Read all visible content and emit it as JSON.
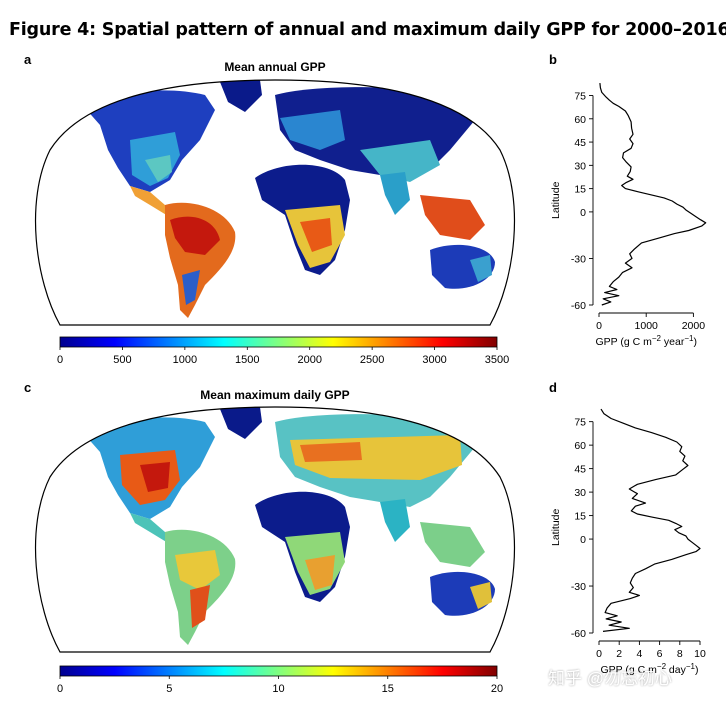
{
  "figure": {
    "title": "Figure 4: Spatial pattern of annual and maximum daily GPP for 2000–2016."
  },
  "panels": {
    "a": {
      "letter": "a",
      "title": "Mean annual GPP",
      "colorbar": {
        "ticks": [
          "0",
          "500",
          "1000",
          "1500",
          "2000",
          "2500",
          "3000",
          "3500"
        ]
      }
    },
    "b": {
      "letter": "b"
    },
    "c": {
      "letter": "c",
      "title": "Mean maximum daily GPP",
      "colorbar": {
        "ticks": [
          "0",
          "5",
          "10",
          "15",
          "20"
        ]
      }
    },
    "d": {
      "letter": "d"
    }
  },
  "colormap": [
    "#00008f",
    "#0000ff",
    "#0080ff",
    "#00ffff",
    "#80ff80",
    "#ffff00",
    "#ff8000",
    "#ff0000",
    "#800000"
  ],
  "watermark": "知乎 @勿忘初心",
  "chart_data": [
    {
      "type": "line",
      "panel": "b",
      "xlabel_parts": [
        "GPP (g C m",
        "−2",
        " year",
        "−1",
        ")"
      ],
      "ylabel": "Latitude",
      "xlim": [
        0,
        2500
      ],
      "ylim": [
        -60,
        85
      ],
      "xticks": [
        0,
        1000,
        2000
      ],
      "yticks": [
        -60,
        -30,
        0,
        15,
        30,
        45,
        60,
        75
      ],
      "y_axis_range": [
        -60,
        75
      ],
      "series": [
        {
          "points": [
            [
              20,
              83
            ],
            [
              30,
              80
            ],
            [
              60,
              77
            ],
            [
              150,
              74
            ],
            [
              220,
              72
            ],
            [
              300,
              70
            ],
            [
              420,
              68
            ],
            [
              560,
              65
            ],
            [
              620,
              62
            ],
            [
              680,
              58
            ],
            [
              690,
              54
            ],
            [
              720,
              50
            ],
            [
              650,
              47
            ],
            [
              720,
              44
            ],
            [
              680,
              41
            ],
            [
              520,
              38
            ],
            [
              500,
              35
            ],
            [
              580,
              32
            ],
            [
              680,
              29
            ],
            [
              660,
              26
            ],
            [
              600,
              23
            ],
            [
              720,
              21
            ],
            [
              580,
              19
            ],
            [
              480,
              17
            ],
            [
              560,
              15
            ],
            [
              820,
              13
            ],
            [
              1100,
              11
            ],
            [
              1380,
              9
            ],
            [
              1550,
              7
            ],
            [
              1650,
              5
            ],
            [
              1780,
              3
            ],
            [
              1850,
              1
            ],
            [
              1950,
              -1
            ],
            [
              2050,
              -3
            ],
            [
              2150,
              -5
            ],
            [
              2260,
              -7
            ],
            [
              2180,
              -9
            ],
            [
              1900,
              -12
            ],
            [
              1600,
              -14
            ],
            [
              1250,
              -17
            ],
            [
              900,
              -20
            ],
            [
              750,
              -24
            ],
            [
              650,
              -27
            ],
            [
              700,
              -30
            ],
            [
              560,
              -33
            ],
            [
              700,
              -36
            ],
            [
              500,
              -39
            ],
            [
              420,
              -42
            ],
            [
              300,
              -45
            ],
            [
              220,
              -48
            ],
            [
              380,
              -50
            ],
            [
              120,
              -52
            ],
            [
              420,
              -54
            ],
            [
              90,
              -56
            ],
            [
              250,
              -58
            ],
            [
              60,
              -60
            ]
          ]
        }
      ]
    },
    {
      "type": "line",
      "panel": "d",
      "xlabel_parts": [
        "GPP (g C m",
        "−2",
        " day",
        "−1",
        ")"
      ],
      "ylabel": "Latitude",
      "xlim": [
        0,
        10
      ],
      "ylim": [
        -60,
        85
      ],
      "xticks": [
        0,
        2,
        4,
        6,
        8,
        10
      ],
      "yticks": [
        -60,
        -30,
        0,
        15,
        30,
        45,
        60,
        75
      ],
      "y_axis_range": [
        -60,
        75
      ],
      "series": [
        {
          "points": [
            [
              0.2,
              83
            ],
            [
              0.5,
              80
            ],
            [
              1.2,
              77
            ],
            [
              2.4,
              74
            ],
            [
              3.6,
              71
            ],
            [
              5.2,
              68
            ],
            [
              6.6,
              65
            ],
            [
              7.7,
              62
            ],
            [
              8.2,
              59
            ],
            [
              8.0,
              56
            ],
            [
              8.5,
              53
            ],
            [
              8.3,
              50
            ],
            [
              8.8,
              47
            ],
            [
              8.2,
              44
            ],
            [
              7.6,
              41
            ],
            [
              5.6,
              38
            ],
            [
              3.8,
              35
            ],
            [
              3.0,
              32
            ],
            [
              3.8,
              29
            ],
            [
              3.3,
              26
            ],
            [
              4.6,
              23
            ],
            [
              3.6,
              21
            ],
            [
              3.2,
              18
            ],
            [
              3.8,
              16
            ],
            [
              5.3,
              14
            ],
            [
              6.9,
              12
            ],
            [
              7.6,
              10
            ],
            [
              8.2,
              8
            ],
            [
              7.5,
              6
            ],
            [
              7.9,
              4
            ],
            [
              8.6,
              2
            ],
            [
              8.8,
              0
            ],
            [
              9.2,
              -2
            ],
            [
              9.6,
              -4
            ],
            [
              10.0,
              -6
            ],
            [
              9.6,
              -8
            ],
            [
              8.6,
              -10
            ],
            [
              7.2,
              -13
            ],
            [
              5.5,
              -16
            ],
            [
              4.6,
              -19
            ],
            [
              3.6,
              -22
            ],
            [
              3.3,
              -25
            ],
            [
              3.1,
              -28
            ],
            [
              3.4,
              -31
            ],
            [
              3.0,
              -34
            ],
            [
              4.0,
              -36
            ],
            [
              3.1,
              -38
            ],
            [
              1.2,
              -41
            ],
            [
              0.8,
              -44
            ],
            [
              0.6,
              -47
            ],
            [
              1.8,
              -49
            ],
            [
              0.7,
              -51
            ],
            [
              2.2,
              -53
            ],
            [
              1.0,
              -55
            ],
            [
              3.0,
              -57
            ],
            [
              0.4,
              -59
            ]
          ]
        }
      ]
    }
  ]
}
